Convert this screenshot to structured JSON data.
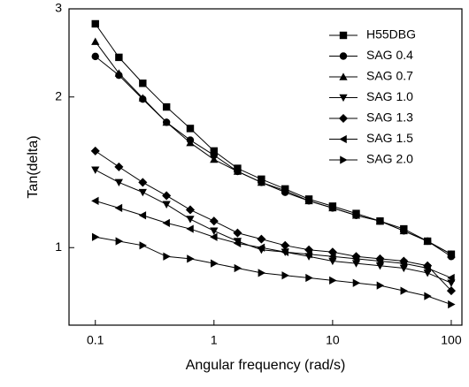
{
  "chart_data": {
    "type": "line",
    "x_label": "Angular frequency (rad/s)",
    "y_label": "Tan(delta)",
    "x": [
      0.1,
      0.158,
      0.251,
      0.398,
      0.631,
      1,
      1.58,
      2.51,
      3.98,
      6.31,
      10,
      15.8,
      25.1,
      39.8,
      63.1,
      100
    ],
    "xlim": [
      0.06,
      123
    ],
    "ylim": [
      0.7,
      3
    ],
    "xticks": [
      0.1,
      1,
      10,
      100
    ],
    "yticks": [
      1,
      2,
      3
    ],
    "log_x": true,
    "log_y": true,
    "legend": "upper right",
    "series": [
      {
        "name": "H55DBG",
        "color": "#000000",
        "marker": "square",
        "values": [
          2.8,
          2.4,
          2.13,
          1.91,
          1.73,
          1.56,
          1.44,
          1.37,
          1.31,
          1.25,
          1.21,
          1.17,
          1.13,
          1.09,
          1.03,
          0.97
        ]
      },
      {
        "name": "SAG 0.4",
        "color": "#000000",
        "marker": "circle",
        "values": [
          2.41,
          2.21,
          1.98,
          1.78,
          1.64,
          1.53,
          1.42,
          1.35,
          1.29,
          1.24,
          1.2,
          1.16,
          1.13,
          1.08,
          1.03,
          0.96
        ]
      },
      {
        "name": "SAG 0.7",
        "color": "#000000",
        "marker": "triangle-up",
        "values": [
          2.58,
          2.23,
          1.99,
          1.78,
          1.62,
          1.5,
          1.42,
          1.35,
          1.3,
          1.24,
          1.2,
          1.16,
          1.13,
          1.08,
          1.03,
          0.97
        ]
      },
      {
        "name": "SAG 1.0",
        "color": "#000000",
        "marker": "triangle-down",
        "values": [
          1.43,
          1.35,
          1.29,
          1.22,
          1.14,
          1.08,
          1.03,
          0.99,
          0.98,
          0.96,
          0.94,
          0.93,
          0.92,
          0.91,
          0.89,
          0.85
        ]
      },
      {
        "name": "SAG 1.3",
        "color": "#000000",
        "marker": "diamond",
        "values": [
          1.56,
          1.45,
          1.35,
          1.27,
          1.19,
          1.13,
          1.07,
          1.04,
          1.01,
          0.99,
          0.98,
          0.96,
          0.95,
          0.94,
          0.92,
          0.82
        ]
      },
      {
        "name": "SAG 1.5",
        "color": "#000000",
        "marker": "triangle-left",
        "values": [
          1.24,
          1.2,
          1.16,
          1.12,
          1.09,
          1.05,
          1.02,
          1.0,
          0.98,
          0.97,
          0.96,
          0.95,
          0.94,
          0.93,
          0.91,
          0.87
        ]
      },
      {
        "name": "SAG 2.0",
        "color": "#000000",
        "marker": "triangle-right",
        "values": [
          1.05,
          1.03,
          1.01,
          0.96,
          0.95,
          0.93,
          0.91,
          0.89,
          0.88,
          0.87,
          0.86,
          0.85,
          0.84,
          0.82,
          0.8,
          0.77
        ]
      }
    ]
  }
}
